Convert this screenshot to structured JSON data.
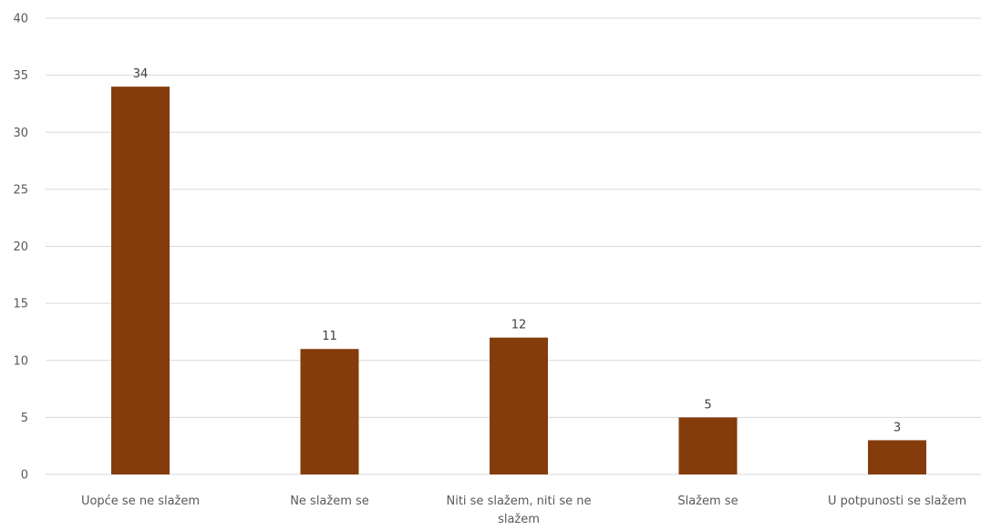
{
  "chart_data": {
    "type": "bar",
    "title": "",
    "xlabel": "",
    "ylabel": "",
    "categories": [
      [
        "Uopće se ne slažem"
      ],
      [
        "Ne slažem se"
      ],
      [
        "Niti se slažem, niti se ne",
        "slažem"
      ],
      [
        "Slažem se"
      ],
      [
        "U potpunosti se slažem"
      ]
    ],
    "values": [
      34,
      11,
      12,
      5,
      3
    ],
    "ylim": [
      0,
      40
    ],
    "yticks": [
      0,
      5,
      10,
      15,
      20,
      25,
      30,
      35,
      40
    ],
    "grid": true,
    "legend": "none",
    "bar_color": "#843C0C"
  }
}
